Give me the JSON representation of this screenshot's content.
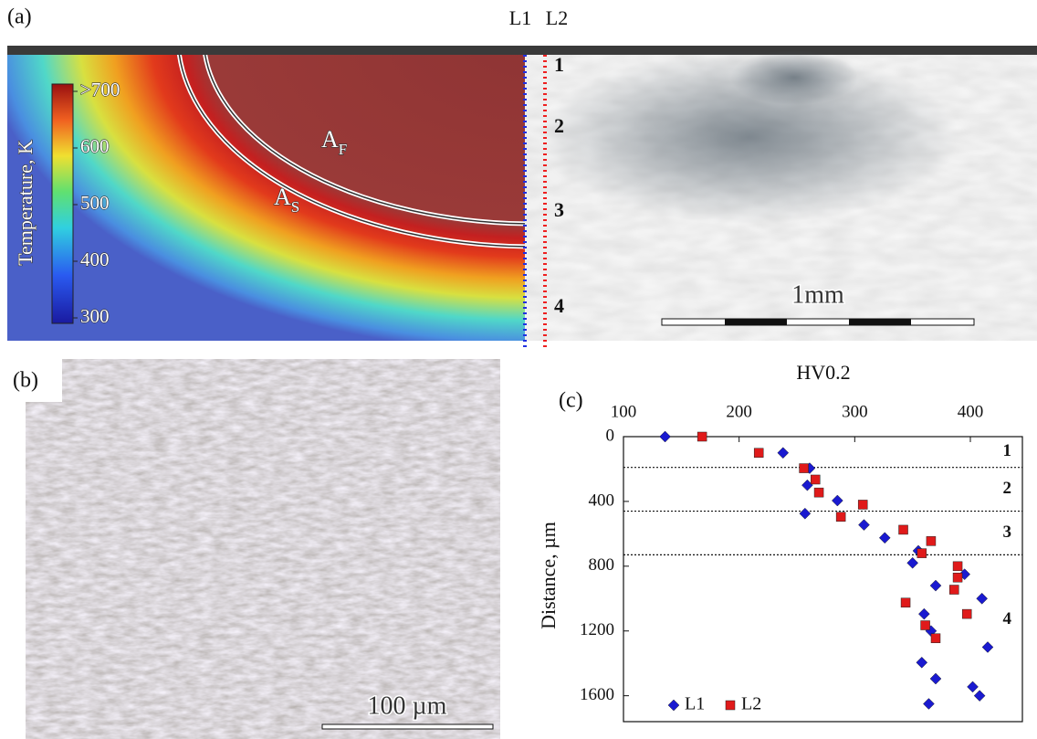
{
  "panel_a": {
    "label": "(a)",
    "line_labels": [
      "L1",
      "L2"
    ],
    "colorbar": {
      "title": "Temperature, K",
      "lim": [
        300,
        700
      ],
      "ticks": [
        {
          "value": 700,
          "label": ">700"
        },
        600,
        500,
        400,
        300
      ]
    },
    "isotherms": [
      {
        "main": "A",
        "sub": "F"
      },
      {
        "main": "A",
        "sub": "S"
      }
    ],
    "zones": [
      "1",
      "2",
      "3",
      "4"
    ],
    "scale_bar": "1mm"
  },
  "panel_b": {
    "label": "(b)",
    "scale_bar": "100 µm"
  },
  "chart_data": {
    "type": "scatter",
    "panel_label": "(c)",
    "x_label": "HV0.2",
    "y_label": "Distance, µm",
    "x_axis_position": "top",
    "y_inverted": true,
    "xlim": [
      100,
      445
    ],
    "xticks": [
      100,
      200,
      300,
      400
    ],
    "ylim": [
      0,
      1760
    ],
    "yticks": [
      0,
      400,
      800,
      1200,
      1600
    ],
    "zone_lines": [
      190,
      460,
      730
    ],
    "zone_labels": [
      "1",
      "2",
      "3",
      "4"
    ],
    "legend": "lower left",
    "series": [
      {
        "name": "L1",
        "color": "#1a1ad0",
        "marker": "diamond",
        "x": [
          136,
          238,
          261,
          259,
          285,
          257,
          308,
          326,
          355,
          350,
          370,
          395,
          410,
          360,
          366,
          415,
          358,
          370,
          402,
          408,
          364
        ],
        "values": [
          0,
          100,
          195,
          300,
          395,
          475,
          545,
          625,
          705,
          780,
          920,
          850,
          1000,
          1095,
          1200,
          1300,
          1395,
          1495,
          1545,
          1600,
          1650
        ]
      },
      {
        "name": "L2",
        "color": "#e01a1a",
        "marker": "square",
        "x": [
          168,
          217,
          256,
          266,
          269,
          307,
          288,
          342,
          366,
          358,
          389,
          389,
          386,
          344,
          397,
          361,
          370
        ],
        "values": [
          0,
          100,
          195,
          265,
          345,
          420,
          495,
          575,
          645,
          720,
          800,
          870,
          945,
          1025,
          1095,
          1165,
          1245
        ]
      }
    ]
  }
}
